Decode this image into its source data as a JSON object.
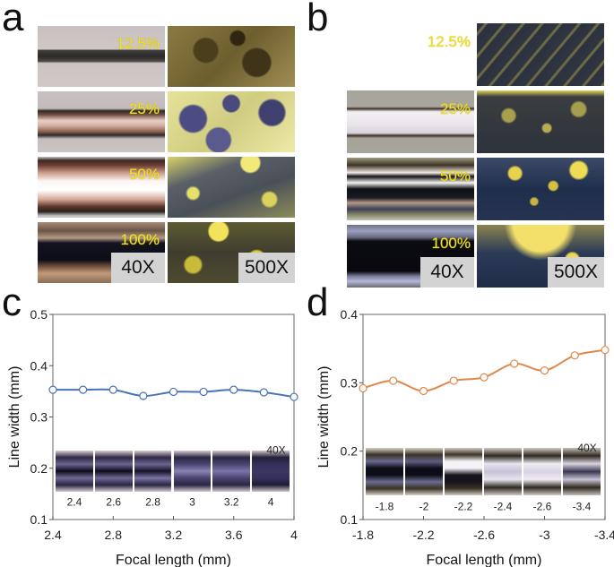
{
  "panels": {
    "a": {
      "letter": "a",
      "rows": [
        {
          "label": "12.5%",
          "left_style": "light-thin",
          "right_style": "olive-dark"
        },
        {
          "label": "25%",
          "left_style": "copper-mid",
          "right_style": "yellow-blue-blobs"
        },
        {
          "label": "50%",
          "left_style": "copper-bright",
          "right_style": "yellow-speckle"
        },
        {
          "label": "100%",
          "left_style": "dark-band",
          "right_style": "yellow-dark"
        }
      ],
      "mag_left": "40X",
      "mag_right": "500X"
    },
    "b": {
      "letter": "b",
      "rows": [
        {
          "label": "12.5%",
          "left_style": "silver-band",
          "right_style": "dark-striated"
        },
        {
          "label": "25%",
          "left_style": "white-band",
          "right_style": "dark-yellow-spots"
        },
        {
          "label": "50%",
          "left_style": "dark-multiband",
          "right_style": "blue-yellow-spots"
        },
        {
          "label": "100%",
          "left_style": "dark-wide",
          "right_style": "blue-yellow-top"
        }
      ],
      "mag_left": "40X",
      "mag_right": "500X"
    },
    "c": {
      "letter": "c",
      "inset_labels": [
        "2.4",
        "2.6",
        "2.8",
        "3",
        "3.2",
        "4"
      ],
      "inset_mag": "40X"
    },
    "d": {
      "letter": "d",
      "inset_labels": [
        "-1.8",
        "-2",
        "-2.2",
        "-2.4",
        "-2.6",
        "-3.4"
      ],
      "inset_mag": "40X"
    }
  },
  "chart_data": [
    {
      "type": "line",
      "panel": "c",
      "title": "",
      "xlabel": "Focal length (mm)",
      "ylabel": "Line width (mm)",
      "x": [
        2.4,
        2.6,
        2.8,
        3.0,
        3.2,
        3.4,
        3.6,
        3.8,
        4.0
      ],
      "series": [
        {
          "name": "line width",
          "values": [
            0.353,
            0.353,
            0.353,
            0.341,
            0.349,
            0.349,
            0.353,
            0.348,
            0.339
          ],
          "color": "#4a72b8"
        }
      ],
      "xlim": [
        2.4,
        4.0
      ],
      "ylim": [
        0.1,
        0.5
      ],
      "xticks": [
        2.4,
        2.8,
        3.2,
        3.6,
        4.0
      ],
      "xtick_labels": [
        "2.4",
        "2.8",
        "3.2",
        "3.6",
        "4"
      ],
      "yticks": [
        0.1,
        0.2,
        0.3,
        0.4,
        0.5
      ],
      "ytick_labels": [
        "0.1",
        "0.2",
        "0.3",
        "0.4",
        "0.5"
      ],
      "grid": false,
      "marker": "open-circle"
    },
    {
      "type": "line",
      "panel": "d",
      "title": "",
      "xlabel": "Focal length (mm)",
      "ylabel": "Line width (mm)",
      "x": [
        -1.8,
        -2.0,
        -2.2,
        -2.4,
        -2.6,
        -2.8,
        -3.0,
        -3.2,
        -3.4
      ],
      "series": [
        {
          "name": "line width",
          "values": [
            0.292,
            0.303,
            0.288,
            0.303,
            0.308,
            0.328,
            0.318,
            0.34,
            0.348
          ],
          "color": "#e0884a"
        }
      ],
      "xlim": [
        -1.8,
        -3.4
      ],
      "ylim": [
        0.1,
        0.4
      ],
      "xticks": [
        -1.8,
        -2.2,
        -2.6,
        -3.0,
        -3.4
      ],
      "xtick_labels": [
        "-1.8",
        "-2.2",
        "-2.6",
        "-3",
        "-3.4"
      ],
      "yticks": [
        0.1,
        0.2,
        0.3,
        0.4
      ],
      "ytick_labels": [
        "0.1",
        "0.2",
        "0.3",
        "0.4"
      ],
      "grid": false,
      "marker": "open-circle"
    }
  ]
}
